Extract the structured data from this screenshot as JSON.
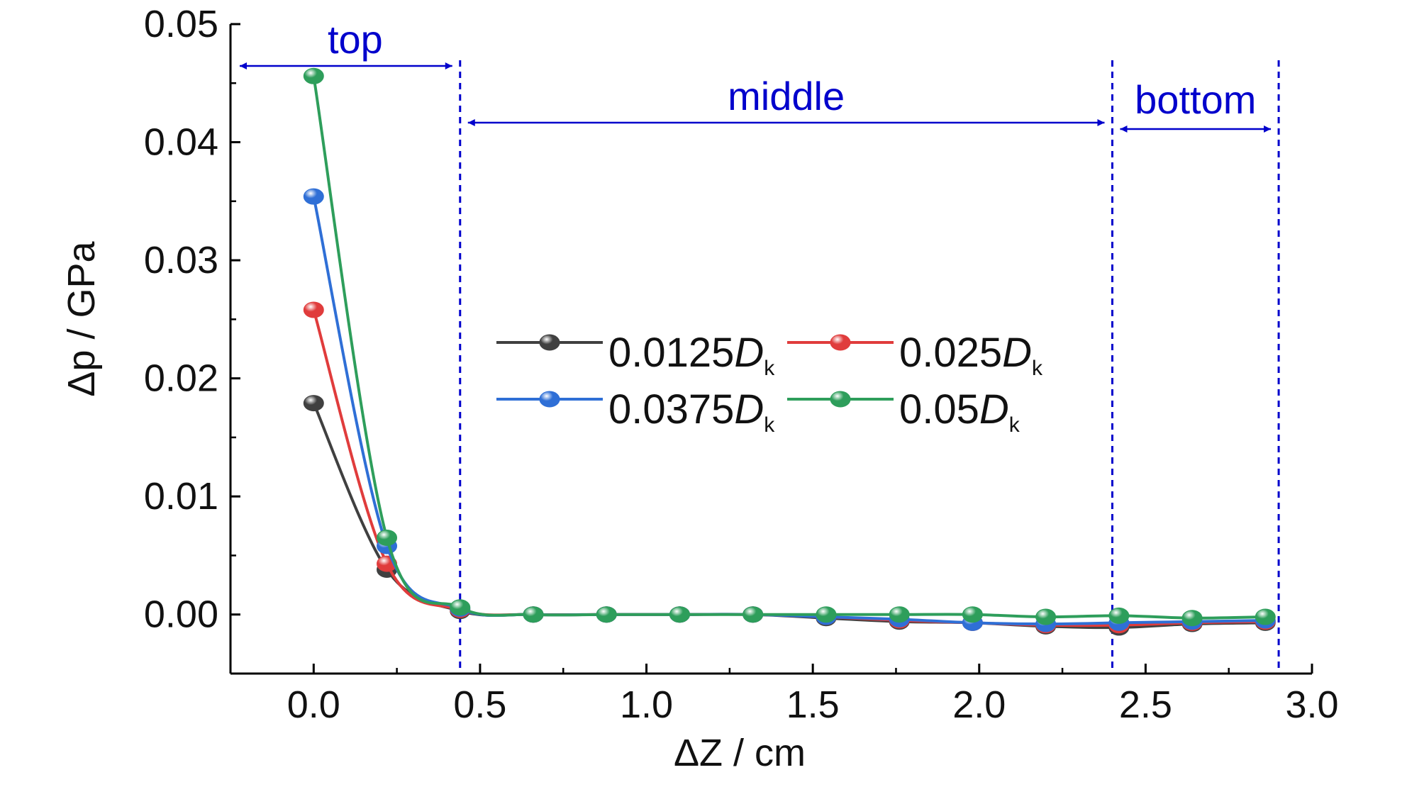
{
  "chart_data": {
    "type": "line",
    "xlabel": "ΔZ / cm",
    "ylabel": "Δp / GPa",
    "xlim": [
      -0.25,
      3.0
    ],
    "ylim": [
      -0.005,
      0.05
    ],
    "xticks": [
      "0.0",
      "0.5",
      "1.0",
      "1.5",
      "2.0",
      "2.5",
      "3.0"
    ],
    "yticks": [
      "0.00",
      "0.01",
      "0.02",
      "0.03",
      "0.04",
      "0.05"
    ],
    "grid": false,
    "legend_position": "center",
    "x": [
      0.0,
      0.22,
      0.44,
      0.66,
      0.88,
      1.1,
      1.32,
      1.54,
      1.76,
      1.98,
      2.2,
      2.42,
      2.64,
      2.86
    ],
    "series": [
      {
        "name": "0.0125",
        "color": "#404040",
        "values": [
          0.0179,
          0.0038,
          0.0003,
          0.0,
          0.0,
          0.0,
          0.0,
          -0.0003,
          -0.0006,
          -0.0007,
          -0.001,
          -0.0011,
          -0.0008,
          -0.0007
        ]
      },
      {
        "name": "0.025",
        "color": "#e03c3c",
        "values": [
          0.0258,
          0.0043,
          0.0004,
          0.0,
          0.0,
          0.0,
          0.0,
          -0.0002,
          -0.0005,
          -0.0007,
          -0.0009,
          -0.0009,
          -0.0007,
          -0.0006
        ]
      },
      {
        "name": "0.0375",
        "color": "#2f6fd6",
        "values": [
          0.0354,
          0.0058,
          0.0005,
          0.0,
          0.0,
          0.0,
          0.0,
          -0.0002,
          -0.0004,
          -0.0007,
          -0.0008,
          -0.0007,
          -0.0006,
          -0.0005
        ]
      },
      {
        "name": "0.05",
        "color": "#2e9e5b",
        "values": [
          0.0456,
          0.0065,
          0.0006,
          0.0,
          0.0,
          0.0,
          0.0,
          0.0,
          0.0,
          0.0,
          -0.0002,
          -0.0001,
          -0.0003,
          -0.0002
        ]
      }
    ],
    "legend_symbol": "D",
    "legend_subscript": "k",
    "regions": [
      {
        "label": "top",
        "from": -0.25,
        "to": 0.44
      },
      {
        "label": "middle",
        "from": 0.44,
        "to": 2.4
      },
      {
        "label": "bottom",
        "from": 2.4,
        "to": 2.9
      }
    ],
    "annotation_color": "#0000cc"
  }
}
